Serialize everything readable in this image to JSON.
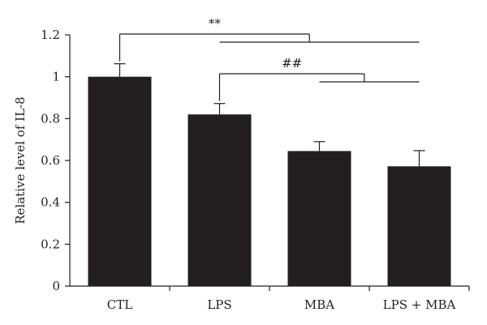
{
  "chart_data": {
    "type": "bar",
    "categories": [
      "CTL",
      "LPS",
      "MBA",
      "LPS + MBA"
    ],
    "values": [
      1.0,
      0.82,
      0.645,
      0.572
    ],
    "errors": [
      0.062,
      0.052,
      0.045,
      0.075
    ],
    "ylabel": "Relative level of IL-8",
    "ylim": [
      0,
      1.2
    ],
    "yticks": [
      0,
      0.2,
      0.4,
      0.6,
      0.8,
      1.0,
      1.2
    ],
    "ytick_labels": [
      "0",
      "0.2",
      "0.4",
      "0.6",
      "0.8",
      "1",
      "1.2"
    ],
    "bar_color": "#231f20",
    "grid": false,
    "annotations": [
      {
        "label": "**",
        "from": "CTL",
        "to": [
          "LPS",
          "MBA",
          "LPS + MBA"
        ]
      },
      {
        "label": "##",
        "from": "LPS",
        "to": [
          "MBA",
          "LPS + MBA"
        ]
      }
    ]
  }
}
